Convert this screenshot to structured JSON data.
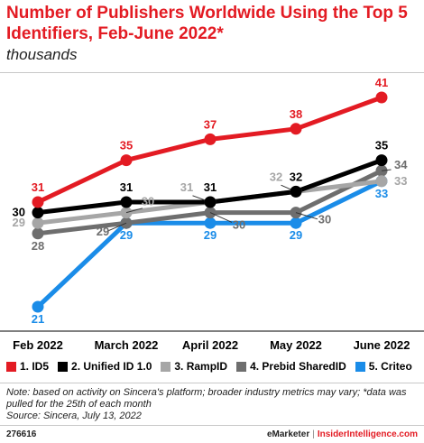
{
  "header": {
    "title": "Number of Publishers Worldwide Using the Top 5 Identifiers, Feb-June 2022*",
    "subtitle": "thousands"
  },
  "chart_data": {
    "type": "line",
    "title": "Number of Publishers Worldwide Using the Top 5 Identifiers, Feb-June 2022*",
    "subtitle": "thousands",
    "categories": [
      "Feb 2022",
      "March 2022",
      "April 2022",
      "May 2022",
      "June 2022"
    ],
    "ylim": [
      21,
      41
    ],
    "grid": false,
    "legend_placement": "bottom",
    "series": [
      {
        "name": "1. ID5",
        "color": "#e31b23",
        "values": [
          31,
          35,
          37,
          38,
          41
        ]
      },
      {
        "name": "2. Unified ID 1.0",
        "color": "#000000",
        "values": [
          30,
          31,
          31,
          32,
          35
        ]
      },
      {
        "name": "3. RampID",
        "color": "#a6a6a6",
        "values": [
          29,
          30,
          31,
          32,
          33
        ]
      },
      {
        "name": "4. Prebid SharedID",
        "color": "#6e6e6e",
        "values": [
          28,
          29,
          30,
          30,
          34
        ]
      },
      {
        "name": "5. Criteo",
        "color": "#1a8ce8",
        "values": [
          21,
          29,
          29,
          29,
          33
        ]
      }
    ]
  },
  "notes": {
    "note": "Note: based on activity on Sincera's platform; broader industry metrics may vary; *data was pulled for the 25th of each month",
    "source": "Source: Sincera, July 13, 2022"
  },
  "footer": {
    "chart_id": "276616",
    "brand_left": "eMarketer",
    "separator": "|",
    "brand_right": "InsiderIntelligence.com"
  }
}
